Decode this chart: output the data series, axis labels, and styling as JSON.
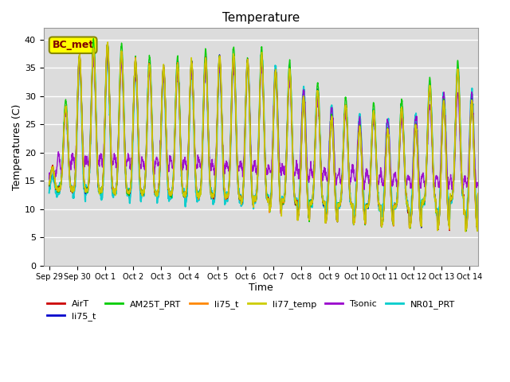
{
  "title": "Temperature",
  "xlabel": "Time",
  "ylabel": "Temperatures (C)",
  "ylim": [
    0,
    42
  ],
  "yticks": [
    0,
    5,
    10,
    15,
    20,
    25,
    30,
    35,
    40
  ],
  "bg_color": "#dcdcdc",
  "fig_color": "#ffffff",
  "annotation_text": "BC_met",
  "annotation_box_color": "#ffff00",
  "annotation_text_color": "#800000",
  "series": [
    {
      "name": "AirT",
      "color": "#cc0000",
      "lw": 1.0,
      "zorder": 4
    },
    {
      "name": "li75_t",
      "color": "#0000cc",
      "lw": 1.0,
      "zorder": 3
    },
    {
      "name": "AM25T_PRT",
      "color": "#00cc00",
      "lw": 1.0,
      "zorder": 5
    },
    {
      "name": "li75_t",
      "color": "#ff8800",
      "lw": 1.0,
      "zorder": 6
    },
    {
      "name": "li77_temp",
      "color": "#cccc00",
      "lw": 1.2,
      "zorder": 7
    },
    {
      "name": "Tsonic",
      "color": "#9900cc",
      "lw": 1.0,
      "zorder": 2
    },
    {
      "name": "NR01_PRT",
      "color": "#00cccc",
      "lw": 1.5,
      "zorder": 1
    }
  ],
  "date_labels": [
    "Sep 29",
    "Sep 30",
    "Oct 1",
    "Oct 2",
    "Oct 3",
    "Oct 4",
    "Oct 5",
    "Oct 6",
    "Oct 7",
    "Oct 8",
    "Oct 9",
    "Oct 10",
    "Oct 11",
    "Oct 12",
    "Oct 13",
    "Oct 14"
  ],
  "n_points": 2016,
  "days": 15.5
}
